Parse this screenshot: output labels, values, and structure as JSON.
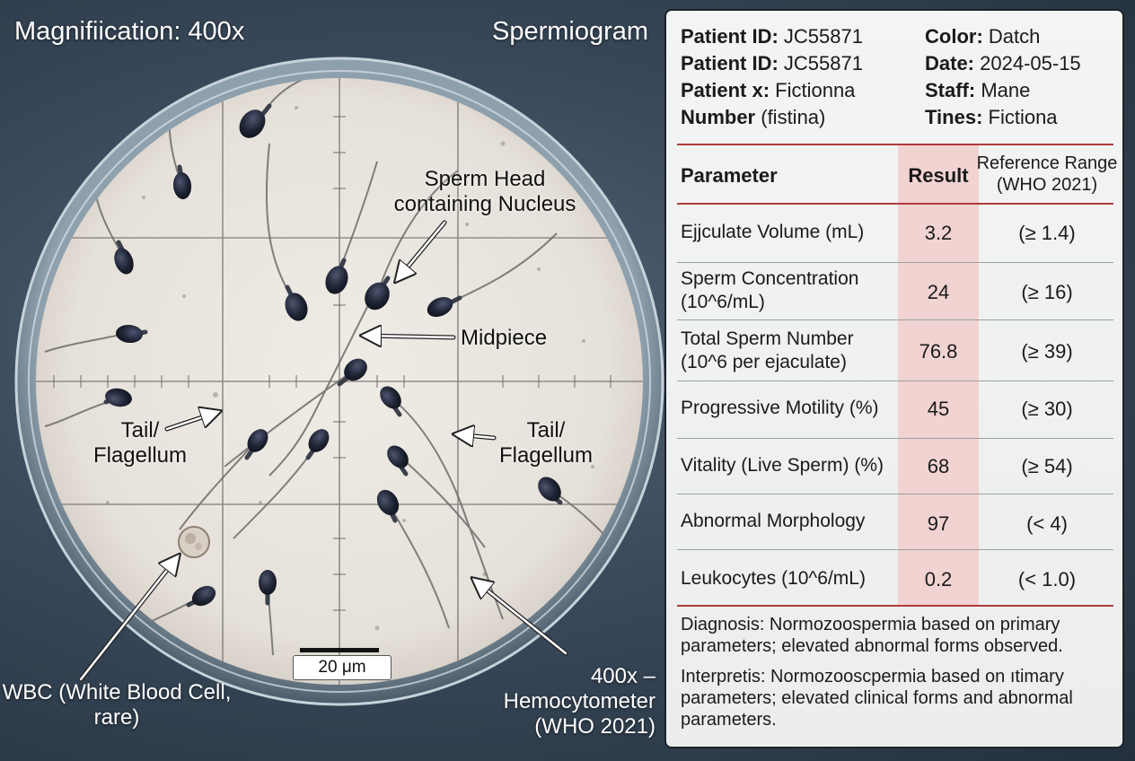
{
  "figure": {
    "magnification_label": "Magnifiication: 400x",
    "title": "Spermiogram",
    "annotations": {
      "head": "Sperm Head containing Nucleus",
      "midpiece": "Midpiece",
      "tail_left": "Tail/ Flagellum",
      "tail_right": "Tail/ Flagellum",
      "wbc": "WBC (White Blood Cell, rare)",
      "hemocytometer": "400x – Hemocytometer (WHO 2021)"
    },
    "scale_bar": "20 μm"
  },
  "patient_info": [
    {
      "label": "Patient ID:",
      "value": " JC55871"
    },
    {
      "label": "Color:",
      "value": " Datch"
    },
    {
      "label": "Patient ID:",
      "value": " JC55871"
    },
    {
      "label": "Date:",
      "value": " 2024-05-15"
    },
    {
      "label": "Patient x:",
      "value": " Fictionna"
    },
    {
      "label": "Staff:",
      "value": " Mane"
    },
    {
      "label": "Number",
      "value": " (fistina)"
    },
    {
      "label": "Tines:",
      "value": " Fictiona"
    }
  ],
  "table": {
    "headers": {
      "parameter": "Parameter",
      "result": "Result",
      "reference": "Reference Range (WHO 2021)"
    },
    "rows": [
      {
        "parameter": "Ejjculate Volume (mL)",
        "result": "3.2",
        "reference": "(≥ 1.4)"
      },
      {
        "parameter": "Sperm Concentration (10^6/mL)",
        "result": "24",
        "reference": "(≥ 16)"
      },
      {
        "parameter": "Total Sperm Number (10^6 per ejaculate)",
        "result": "76.8",
        "reference": "(≥ 39)"
      },
      {
        "parameter": "Progressive Motility (%)",
        "result": "45",
        "reference": "(≥ 30)"
      },
      {
        "parameter": "Vitality (Live Sperm) (%)",
        "result": "68",
        "reference": "(≥ 54)"
      },
      {
        "parameter": "Abnormal Morphology",
        "result": "97",
        "reference": "(< 4)"
      },
      {
        "parameter": "Leukocytes (10^6/mL)",
        "result": "0.2",
        "reference": "(< 1.0)"
      }
    ]
  },
  "diagnosis": "Diagnosis: Normozoospermia based on primary parameters; elevated abnormal forms observed.",
  "interpretation": "Interpretis: Normozooscpermia based on ıtimary parameters; elevated clinical forms and abnormal parameters.",
  "colors": {
    "result_column": "#f1d3d2",
    "rule": "#b03a3a",
    "sperm_head": "#1f2535",
    "field": "#e9e5df"
  }
}
